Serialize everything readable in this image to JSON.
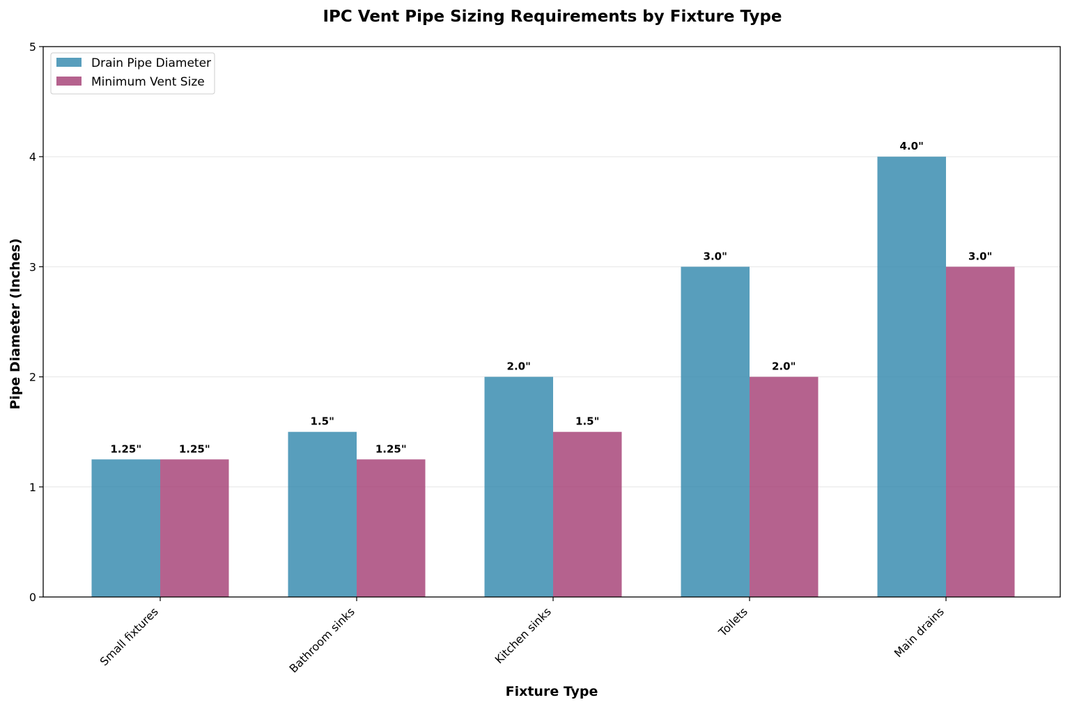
{
  "chart_data": {
    "type": "bar",
    "title": "IPC Vent Pipe Sizing Requirements by Fixture Type",
    "xlabel": "Fixture Type",
    "ylabel": "Pipe Diameter (Inches)",
    "ylim": [
      0,
      5
    ],
    "yticks": [
      "0",
      "1",
      "2",
      "3",
      "4",
      "5"
    ],
    "grid": "y",
    "legend_position": "top-left",
    "categories": [
      "Small fixtures",
      "Bathroom sinks",
      "Kitchen sinks",
      "Toilets",
      "Main drains"
    ],
    "series": [
      {
        "name": "Drain Pipe Diameter",
        "color": "#2E86AB",
        "values": [
          1.25,
          1.5,
          2.0,
          3.0,
          4.0
        ],
        "labels": [
          "1.25\"",
          "1.5\"",
          "2.0\"",
          "3.0\"",
          "4.0\""
        ]
      },
      {
        "name": "Minimum Vent Size",
        "color": "#A23B72",
        "values": [
          1.25,
          1.25,
          1.5,
          2.0,
          3.0
        ],
        "labels": [
          "1.25\"",
          "1.25\"",
          "1.5\"",
          "2.0\"",
          "3.0\""
        ]
      }
    ]
  }
}
